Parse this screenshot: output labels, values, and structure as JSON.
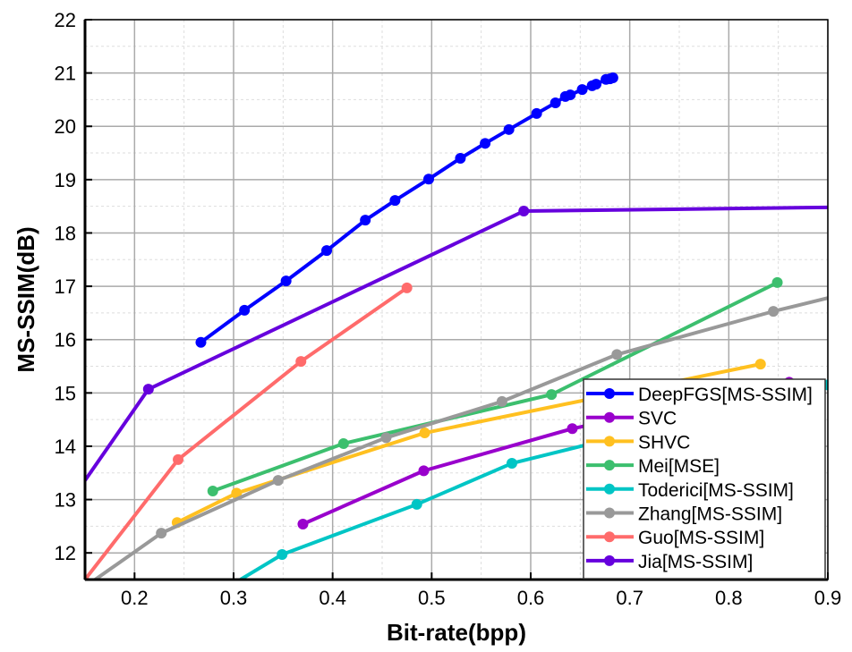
{
  "chart_data": {
    "type": "line",
    "title": "",
    "xlabel": "Bit-rate(bpp)",
    "ylabel": "MS-SSIM(dB)",
    "xlim": [
      0.15,
      0.9
    ],
    "ylim": [
      11.5,
      22
    ],
    "xticks": [
      0.2,
      0.3,
      0.4,
      0.5,
      0.6,
      0.7,
      0.8,
      0.9
    ],
    "xtick_labels": [
      "0.2",
      "0.3",
      "0.4",
      "0.5",
      "0.6",
      "0.7",
      "0.8",
      "0.9"
    ],
    "yticks": [
      12,
      13,
      14,
      15,
      16,
      17,
      18,
      19,
      20,
      21,
      22
    ],
    "ytick_labels": [
      "12",
      "13",
      "14",
      "15",
      "16",
      "17",
      "18",
      "19",
      "20",
      "21",
      "22"
    ],
    "grid": true,
    "legend_position": "bottom-right",
    "series": [
      {
        "name": "DeepFGS[MS-SSIM]",
        "color": "#0000ff",
        "x": [
          0.267,
          0.311,
          0.353,
          0.394,
          0.433,
          0.463,
          0.497,
          0.529,
          0.554,
          0.578,
          0.606,
          0.625,
          0.635,
          0.64,
          0.652,
          0.662,
          0.666,
          0.676,
          0.68,
          0.683
        ],
        "y": [
          15.95,
          16.55,
          17.1,
          17.67,
          18.24,
          18.61,
          19.01,
          19.4,
          19.68,
          19.94,
          20.24,
          20.44,
          20.56,
          20.59,
          20.69,
          20.76,
          20.79,
          20.88,
          20.89,
          20.91
        ]
      },
      {
        "name": "SVC",
        "color": "#9900cc",
        "x": [
          0.37,
          0.492,
          0.642,
          0.861
        ],
        "y": [
          12.54,
          13.54,
          14.33,
          15.2
        ]
      },
      {
        "name": "SHVC",
        "color": "#ffc020",
        "x": [
          0.243,
          0.303,
          0.493,
          0.832
        ],
        "y": [
          12.57,
          13.12,
          14.25,
          15.54
        ]
      },
      {
        "name": "Mei[MSE]",
        "color": "#3cbf6e",
        "x": [
          0.279,
          0.411,
          0.621,
          0.849
        ],
        "y": [
          13.16,
          14.05,
          14.97,
          17.07
        ]
      },
      {
        "name": "Toderici[MS-SSIM]",
        "color": "#00c5c5",
        "x": [
          0.307,
          0.349,
          0.485,
          0.581,
          0.9
        ],
        "y": [
          11.5,
          11.97,
          12.91,
          13.68,
          15.15
        ],
        "markers": [
          false,
          true,
          true,
          true,
          true
        ]
      },
      {
        "name": "Zhang[MS-SSIM]",
        "color": "#999999",
        "x": [
          0.158,
          0.227,
          0.345,
          0.454,
          0.571,
          0.687,
          0.845,
          0.9
        ],
        "y": [
          11.47,
          12.37,
          13.36,
          14.16,
          14.84,
          15.72,
          16.53,
          16.78
        ],
        "markers": [
          false,
          true,
          true,
          true,
          true,
          true,
          true,
          false
        ]
      },
      {
        "name": "Guo[MS-SSIM]",
        "color": "#ff6b6b",
        "x": [
          0.15,
          0.244,
          0.368,
          0.475
        ],
        "y": [
          11.5,
          13.75,
          15.59,
          16.97
        ],
        "markers": [
          false,
          true,
          true,
          true
        ]
      },
      {
        "name": "Jia[MS-SSIM]",
        "color": "#6600dd",
        "x": [
          0.15,
          0.214,
          0.593,
          0.9
        ],
        "y": [
          13.36,
          15.07,
          18.41,
          18.48
        ],
        "markers": [
          false,
          true,
          true,
          false
        ]
      }
    ]
  }
}
